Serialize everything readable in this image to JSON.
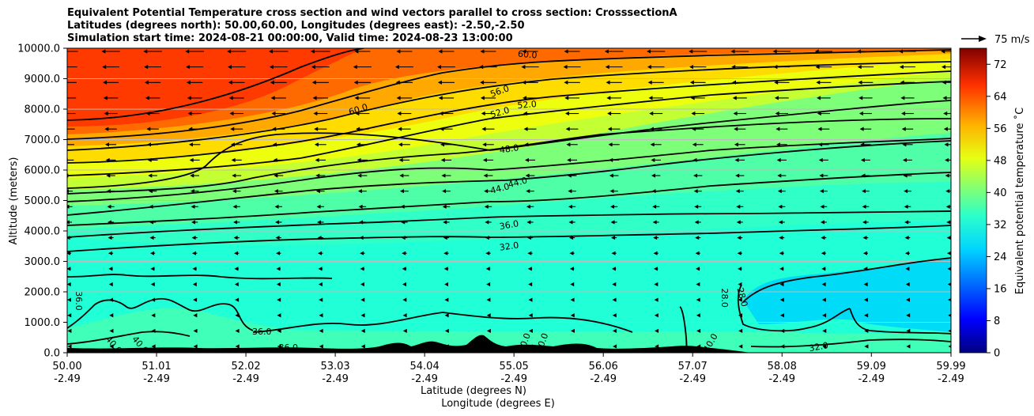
{
  "chart_data": {
    "type": "heatmap",
    "title_lines": [
      "Equivalent Potential Temperature cross section and wind vectors parallel to cross section: CrosssectionA",
      "Latitudes (degrees north): 50.00,60.00, Longitudes (degrees east): -2.50,-2.50",
      "Simulation start time: 2024-08-21 00:00:00, Valid time: 2024-08-23 13:00:00"
    ],
    "xlabel_lines": [
      "Latitude (degrees N)",
      "Longitude (degrees E)"
    ],
    "ylabel": "Altitude (meters)",
    "x_ticks": [
      {
        "lat": "50.00",
        "lon": "-2.49"
      },
      {
        "lat": "51.01",
        "lon": "-2.49"
      },
      {
        "lat": "52.02",
        "lon": "-2.49"
      },
      {
        "lat": "53.03",
        "lon": "-2.49"
      },
      {
        "lat": "54.04",
        "lon": "-2.49"
      },
      {
        "lat": "55.05",
        "lon": "-2.49"
      },
      {
        "lat": "56.06",
        "lon": "-2.49"
      },
      {
        "lat": "57.07",
        "lon": "-2.49"
      },
      {
        "lat": "58.08",
        "lon": "-2.49"
      },
      {
        "lat": "59.09",
        "lon": "-2.49"
      },
      {
        "lat": "59.99",
        "lon": "-2.49"
      }
    ],
    "x_range": [
      50.0,
      59.99
    ],
    "y_ticks": [
      "0.0",
      "1000.0",
      "2000.0",
      "3000.0",
      "4000.0",
      "5000.0",
      "6000.0",
      "7000.0",
      "8000.0",
      "9000.0",
      "10000.0"
    ],
    "y_range": [
      0,
      10000
    ],
    "colorbar": {
      "label": "Equivalent potential temperature ˚C",
      "ticks": [
        "0",
        "8",
        "16",
        "24",
        "32",
        "40",
        "48",
        "56",
        "64",
        "72"
      ],
      "range": [
        0,
        76
      ],
      "colormap": "jet"
    },
    "quiver_key": "75 m/s",
    "contour_labels": [
      {
        "text": "60.0",
        "lat": 55.2,
        "alt": 9700,
        "angle": 5
      },
      {
        "text": "60.0",
        "lat": 53.3,
        "alt": 7900,
        "angle": -18
      },
      {
        "text": "56.0",
        "lat": 54.9,
        "alt": 8500,
        "angle": -20
      },
      {
        "text": "52.0",
        "lat": 54.9,
        "alt": 7800,
        "angle": -16
      },
      {
        "text": "52.0",
        "lat": 55.2,
        "alt": 8050,
        "angle": -5
      },
      {
        "text": "48.0",
        "lat": 55.0,
        "alt": 6600,
        "angle": -8
      },
      {
        "text": "44.0",
        "lat": 54.9,
        "alt": 5300,
        "angle": -15
      },
      {
        "text": "44.0",
        "lat": 55.1,
        "alt": 5500,
        "angle": -15
      },
      {
        "text": "36.0",
        "lat": 55.0,
        "alt": 4100,
        "angle": -10
      },
      {
        "text": "32.0",
        "lat": 55.0,
        "alt": 3400,
        "angle": -8
      },
      {
        "text": "36.0",
        "lat": 50.1,
        "alt": 1700,
        "angle": 90
      },
      {
        "text": "36.0",
        "lat": 52.2,
        "alt": 600,
        "angle": 0
      },
      {
        "text": "36.0",
        "lat": 52.5,
        "alt": 80,
        "angle": 0
      },
      {
        "text": "28.0",
        "lat": 57.4,
        "alt": 1800,
        "angle": 90
      },
      {
        "text": "28.0",
        "lat": 57.6,
        "alt": 1800,
        "angle": 75
      },
      {
        "text": "32.0",
        "lat": 58.5,
        "alt": 100,
        "angle": -10
      },
      {
        "text": "40.0",
        "lat": 50.5,
        "alt": 200,
        "angle": 50
      },
      {
        "text": "40.0",
        "lat": 50.8,
        "alt": 200,
        "angle": 50
      },
      {
        "text": "40.0",
        "lat": 55.2,
        "alt": 300,
        "angle": -70
      },
      {
        "text": "40.0",
        "lat": 55.4,
        "alt": 300,
        "angle": -70
      },
      {
        "text": "40.0",
        "lat": 57.3,
        "alt": 280,
        "angle": -60
      }
    ]
  }
}
